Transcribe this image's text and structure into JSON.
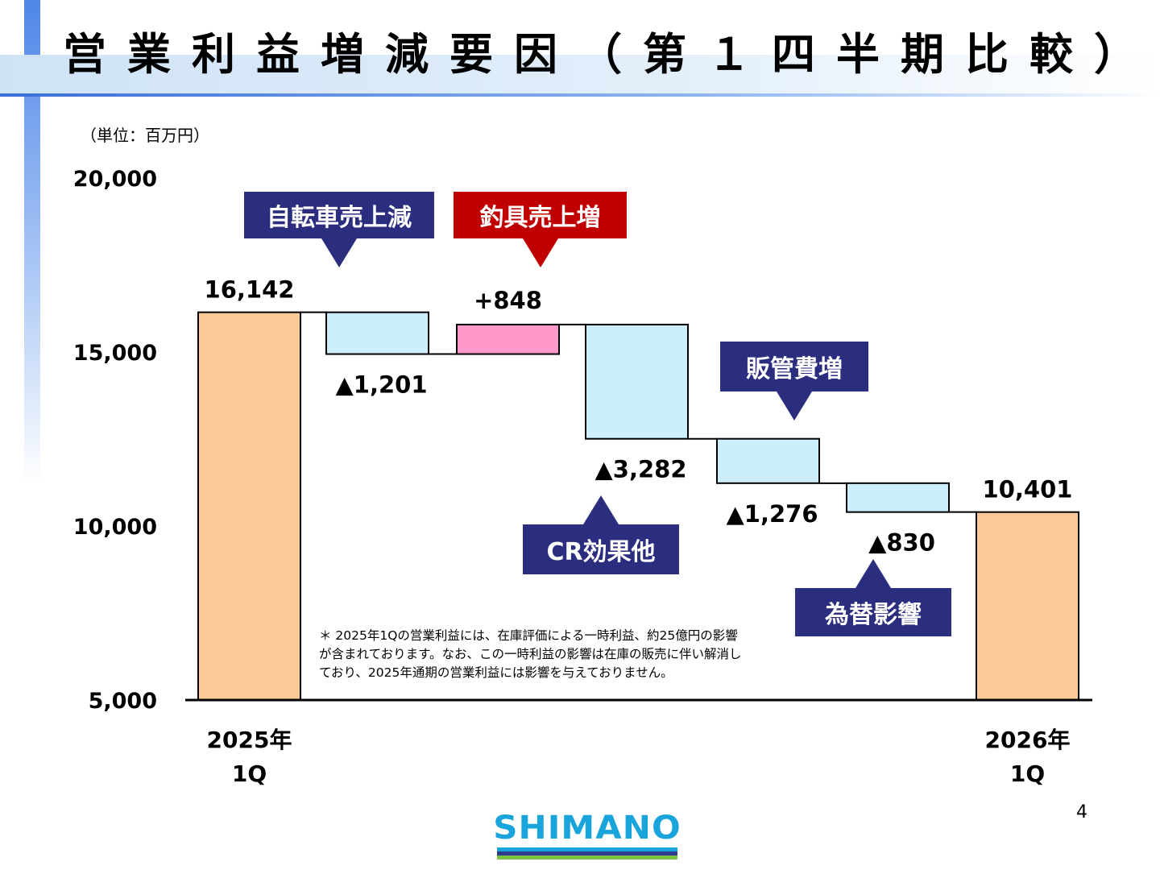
{
  "header": {
    "title": "営業利益増減要因（第１四半期比較）"
  },
  "unit_label": "（単位：百万円）",
  "chart_data": {
    "type": "bar",
    "subtype": "waterfall",
    "ylim": [
      5000,
      20000
    ],
    "yticks": [
      5000,
      10000,
      15000,
      20000
    ],
    "ytick_labels": [
      "5,000",
      "10,000",
      "15,000",
      "20,000"
    ],
    "bars": [
      {
        "kind": "total",
        "category": "2025年\n1Q",
        "start": 5000,
        "end": 16142,
        "label": "16,142",
        "color": "#fcc99a"
      },
      {
        "kind": "change",
        "category": "",
        "start": 16142,
        "end": 14941,
        "label": "▲1,201",
        "color": "#cdeefb"
      },
      {
        "kind": "change",
        "category": "",
        "start": 14941,
        "end": 15789,
        "label": "+848",
        "color": "#ff99cc"
      },
      {
        "kind": "change",
        "category": "",
        "start": 15789,
        "end": 12507,
        "label": "▲3,282",
        "color": "#cdeefb"
      },
      {
        "kind": "change",
        "category": "",
        "start": 12507,
        "end": 11231,
        "label": "▲1,276",
        "color": "#cdeefb"
      },
      {
        "kind": "change",
        "category": "",
        "start": 11231,
        "end": 10401,
        "label": "▲830",
        "color": "#cdeefb"
      },
      {
        "kind": "total",
        "category": "2026年\n1Q",
        "start": 5000,
        "end": 10401,
        "label": "10,401",
        "color": "#fcc99a"
      }
    ],
    "categories": [
      "2025年\n1Q",
      "2026年\n1Q"
    ],
    "callouts": [
      {
        "text": "自転車売上減",
        "bar": 1,
        "color": "#2b2d7e"
      },
      {
        "text": "釣具売上増",
        "bar": 2,
        "color": "#c00000"
      },
      {
        "text": "CR効果他",
        "bar": 3,
        "color": "#2b2d7e"
      },
      {
        "text": "販管費増",
        "bar": 4,
        "color": "#2b2d7e"
      },
      {
        "text": "為替影響",
        "bar": 5,
        "color": "#2b2d7e"
      }
    ],
    "grid": false
  },
  "note": "＊ 2025年1Qの営業利益には、在庫評価による一時利益、約25億円の影響\nが含まれております。なお、この一時利益の影響は在庫の販売に伴い解消し\nており、2025年通期の営業利益には影響を与えておりません。",
  "page_number": "4",
  "logo": {
    "text": "SHIMANO",
    "colors": [
      "#1aa4dc",
      "#2d3b8c",
      "#7cc242"
    ]
  }
}
